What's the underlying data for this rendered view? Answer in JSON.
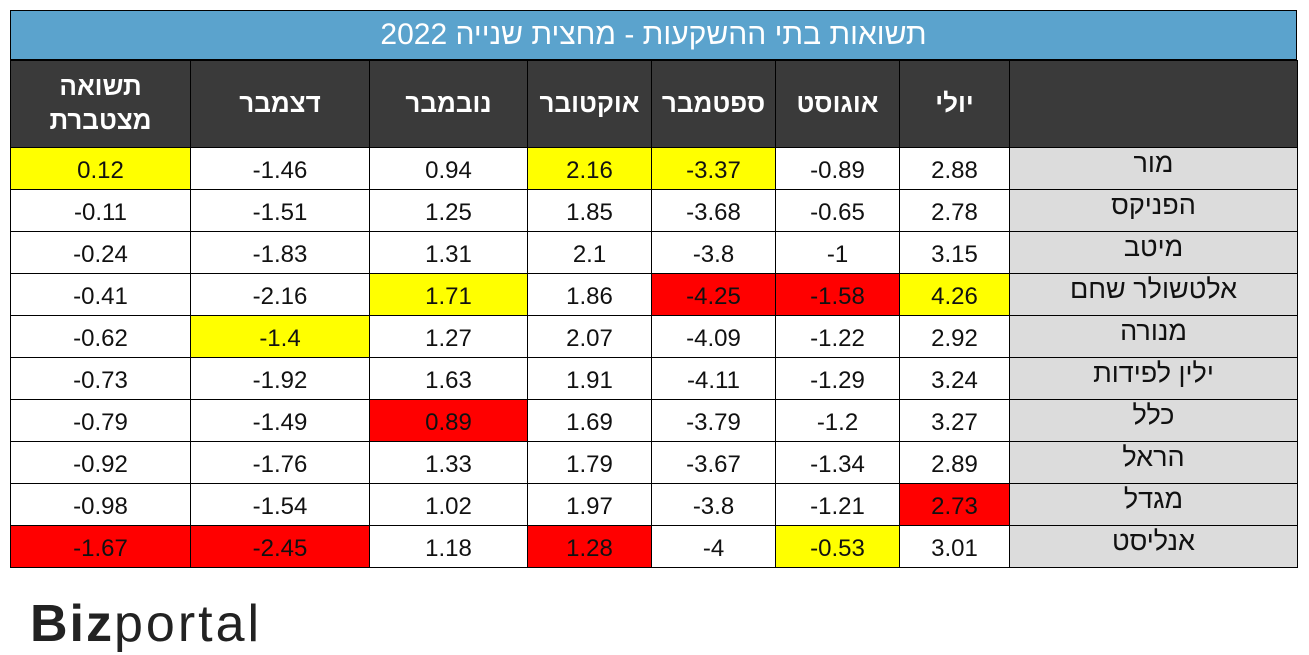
{
  "title": "תשואות בתי ההשקעות - מחצית שנייה 2022",
  "logo": {
    "part1": "Biz",
    "part2": "portal"
  },
  "chart_data": {
    "type": "table",
    "title": "תשואות בתי ההשקעות - מחצית שנייה 2022",
    "columns": [
      "",
      "יולי",
      "אוגוסט",
      "ספטמבר",
      "אוקטובר",
      "נובמבר",
      "דצמבר",
      "תשואה מצטברת"
    ],
    "highlight_colors": {
      "yellow": "#ffff00",
      "red": "#ff0000",
      "header": "#3a3a3a",
      "title": "#5ba3cd",
      "name_cell": "#dcdcdc"
    },
    "rows": [
      {
        "name": "מור",
        "values": [
          "2.88",
          "-0.89",
          "-3.37",
          "2.16",
          "0.94",
          "-1.46",
          "0.12"
        ],
        "highlights": [
          "",
          "",
          "yellow",
          "yellow",
          "",
          "",
          "yellow"
        ]
      },
      {
        "name": "הפניקס",
        "values": [
          "2.78",
          "-0.65",
          "-3.68",
          "1.85",
          "1.25",
          "-1.51",
          "-0.11"
        ],
        "highlights": [
          "",
          "",
          "",
          "",
          "",
          "",
          ""
        ]
      },
      {
        "name": "מיטב",
        "values": [
          "3.15",
          "-1",
          "-3.8",
          "2.1",
          "1.31",
          "-1.83",
          "-0.24"
        ],
        "highlights": [
          "",
          "",
          "",
          "",
          "",
          "",
          ""
        ]
      },
      {
        "name": "אלטשולר שחם",
        "values": [
          "4.26",
          "-1.58",
          "-4.25",
          "1.86",
          "1.71",
          "-2.16",
          "-0.41"
        ],
        "highlights": [
          "yellow",
          "red",
          "red",
          "",
          "yellow",
          "",
          ""
        ]
      },
      {
        "name": "מנורה",
        "values": [
          "2.92",
          "-1.22",
          "-4.09",
          "2.07",
          "1.27",
          "-1.4",
          "-0.62"
        ],
        "highlights": [
          "",
          "",
          "",
          "",
          "",
          "yellow",
          ""
        ]
      },
      {
        "name": "ילין לפידות",
        "values": [
          "3.24",
          "-1.29",
          "-4.11",
          "1.91",
          "1.63",
          "-1.92",
          "-0.73"
        ],
        "highlights": [
          "",
          "",
          "",
          "",
          "",
          "",
          ""
        ]
      },
      {
        "name": "כלל",
        "values": [
          "3.27",
          "-1.2",
          "-3.79",
          "1.69",
          "0.89",
          "-1.49",
          "-0.79"
        ],
        "highlights": [
          "",
          "",
          "",
          "",
          "red",
          "",
          ""
        ]
      },
      {
        "name": "הראל",
        "values": [
          "2.89",
          "-1.34",
          "-3.67",
          "1.79",
          "1.33",
          "-1.76",
          "-0.92"
        ],
        "highlights": [
          "",
          "",
          "",
          "",
          "",
          "",
          ""
        ]
      },
      {
        "name": "מגדל",
        "values": [
          "2.73",
          "-1.21",
          "-3.8",
          "1.97",
          "1.02",
          "-1.54",
          "-0.98"
        ],
        "highlights": [
          "red",
          "",
          "",
          "",
          "",
          "",
          ""
        ]
      },
      {
        "name": "אנליסט",
        "values": [
          "3.01",
          "-0.53",
          "-4",
          "1.28",
          "1.18",
          "-2.45",
          "-1.67"
        ],
        "highlights": [
          "",
          "yellow",
          "",
          "red",
          "",
          "red",
          "red"
        ]
      }
    ]
  }
}
